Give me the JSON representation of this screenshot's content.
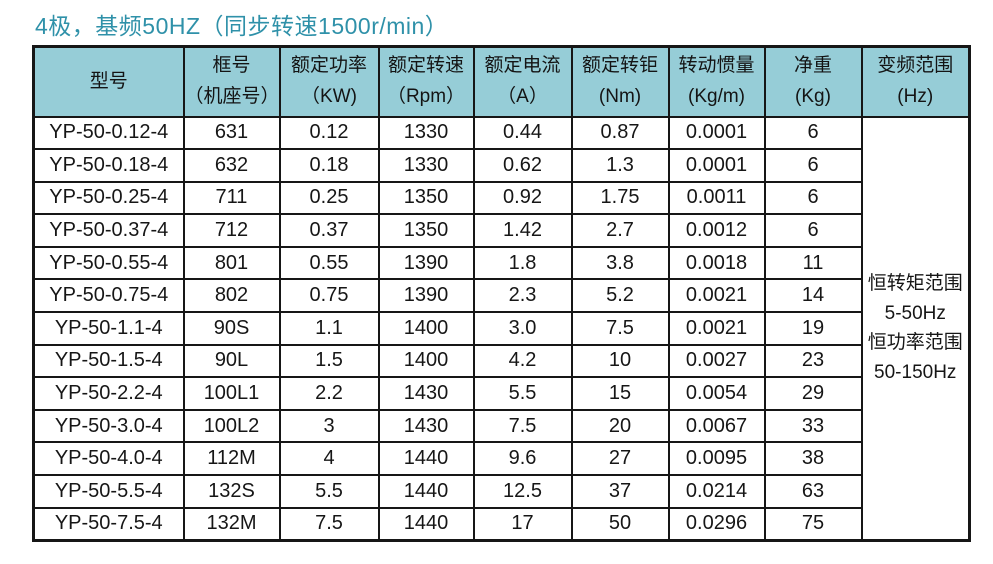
{
  "title": "4极，基频50HZ（同步转速1500r/min）",
  "colors": {
    "title_text": "#2f91a9",
    "header_bg": "#96cdd7",
    "border": "#161616"
  },
  "table": {
    "headers": [
      {
        "line1": "型号",
        "line2": ""
      },
      {
        "line1": "框号",
        "line2": "（机座号）"
      },
      {
        "line1": "额定功率",
        "line2": "（KW)"
      },
      {
        "line1": "额定转速",
        "line2": "（Rpm）"
      },
      {
        "line1": "额定电流",
        "line2": "（A）"
      },
      {
        "line1": "额定转钜",
        "line2": "(Nm)"
      },
      {
        "line1": "转动惯量",
        "line2": "(Kg/m)"
      },
      {
        "line1": "净重",
        "line2": "(Kg)"
      },
      {
        "line1": "变频范围",
        "line2": "(Hz)"
      }
    ],
    "rows": [
      {
        "model": "YP-50-0.12-4",
        "frame": "631",
        "power": "0.12",
        "speed": "1330",
        "current": "0.44",
        "torque": "0.87",
        "inertia": "0.0001",
        "weight": "6"
      },
      {
        "model": "YP-50-0.18-4",
        "frame": "632",
        "power": "0.18",
        "speed": "1330",
        "current": "0.62",
        "torque": "1.3",
        "inertia": "0.0001",
        "weight": "6"
      },
      {
        "model": "YP-50-0.25-4",
        "frame": "711",
        "power": "0.25",
        "speed": "1350",
        "current": "0.92",
        "torque": "1.75",
        "inertia": "0.0011",
        "weight": "6"
      },
      {
        "model": "YP-50-0.37-4",
        "frame": "712",
        "power": "0.37",
        "speed": "1350",
        "current": "1.42",
        "torque": "2.7",
        "inertia": "0.0012",
        "weight": "6"
      },
      {
        "model": "YP-50-0.55-4",
        "frame": "801",
        "power": "0.55",
        "speed": "1390",
        "current": "1.8",
        "torque": "3.8",
        "inertia": "0.0018",
        "weight": "11"
      },
      {
        "model": "YP-50-0.75-4",
        "frame": "802",
        "power": "0.75",
        "speed": "1390",
        "current": "2.3",
        "torque": "5.2",
        "inertia": "0.0021",
        "weight": "14"
      },
      {
        "model": "YP-50-1.1-4",
        "frame": "90S",
        "power": "1.1",
        "speed": "1400",
        "current": "3.0",
        "torque": "7.5",
        "inertia": "0.0021",
        "weight": "19"
      },
      {
        "model": "YP-50-1.5-4",
        "frame": "90L",
        "power": "1.5",
        "speed": "1400",
        "current": "4.2",
        "torque": "10",
        "inertia": "0.0027",
        "weight": "23"
      },
      {
        "model": "YP-50-2.2-4",
        "frame": "100L1",
        "power": "2.2",
        "speed": "1430",
        "current": "5.5",
        "torque": "15",
        "inertia": "0.0054",
        "weight": "29"
      },
      {
        "model": "YP-50-3.0-4",
        "frame": "100L2",
        "power": "3",
        "speed": "1430",
        "current": "7.5",
        "torque": "20",
        "inertia": "0.0067",
        "weight": "33"
      },
      {
        "model": "YP-50-4.0-4",
        "frame": "112M",
        "power": "4",
        "speed": "1440",
        "current": "9.6",
        "torque": "27",
        "inertia": "0.0095",
        "weight": "38"
      },
      {
        "model": "YP-50-5.5-4",
        "frame": "132S",
        "power": "5.5",
        "speed": "1440",
        "current": "12.5",
        "torque": "37",
        "inertia": "0.0214",
        "weight": "63"
      },
      {
        "model": "YP-50-7.5-4",
        "frame": "132M",
        "power": "7.5",
        "speed": "1440",
        "current": "17",
        "torque": "50",
        "inertia": "0.0296",
        "weight": "75"
      }
    ],
    "freq_range": {
      "lines": [
        "恒转矩范围",
        "5-50Hz",
        "恒功率范围",
        "50-150Hz"
      ]
    }
  }
}
